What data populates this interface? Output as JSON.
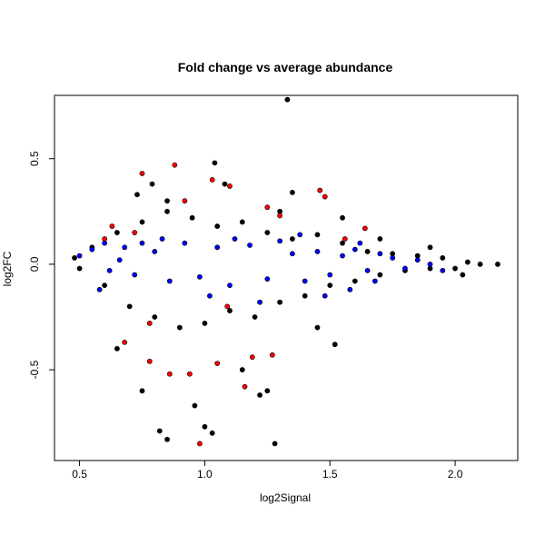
{
  "chart_data": {
    "type": "scatter",
    "title": "Fold change vs average abundance",
    "xlabel": "log2Signal",
    "ylabel": "log2FC",
    "xlim": [
      0.4,
      2.25
    ],
    "ylim": [
      -0.93,
      0.8
    ],
    "x_ticks": [
      0.5,
      1.0,
      1.5,
      2.0
    ],
    "x_tick_labels": [
      "0.5",
      "1.0",
      "1.5",
      "2.0"
    ],
    "y_ticks": [
      -0.5,
      0.0,
      0.5
    ],
    "y_tick_labels": [
      "-0.5",
      "0.0",
      "0.5"
    ],
    "grid": false,
    "legend": "none",
    "colors": {
      "black": "#000000",
      "blue": "#0000ff",
      "red": "#ff0000"
    },
    "series": [
      {
        "color": "black",
        "points": [
          [
            0.48,
            0.03
          ],
          [
            0.5,
            -0.02
          ],
          [
            0.55,
            0.08
          ],
          [
            0.6,
            -0.1
          ],
          [
            0.65,
            0.15
          ],
          [
            0.7,
            -0.2
          ],
          [
            0.75,
            0.2
          ],
          [
            0.8,
            -0.25
          ],
          [
            0.85,
            0.25
          ],
          [
            0.9,
            -0.3
          ],
          [
            0.95,
            0.22
          ],
          [
            1.0,
            -0.28
          ],
          [
            1.05,
            0.18
          ],
          [
            1.1,
            -0.22
          ],
          [
            1.15,
            0.2
          ],
          [
            1.2,
            -0.25
          ],
          [
            1.25,
            0.15
          ],
          [
            1.3,
            -0.18
          ],
          [
            1.35,
            0.12
          ],
          [
            1.4,
            -0.15
          ],
          [
            1.45,
            0.14
          ],
          [
            1.5,
            -0.1
          ],
          [
            1.55,
            0.1
          ],
          [
            1.6,
            -0.08
          ],
          [
            1.65,
            0.06
          ],
          [
            1.7,
            -0.05
          ],
          [
            1.75,
            0.05
          ],
          [
            1.8,
            -0.03
          ],
          [
            1.85,
            0.04
          ],
          [
            1.9,
            -0.02
          ],
          [
            1.95,
            0.03
          ],
          [
            2.0,
            -0.02
          ],
          [
            2.05,
            0.01
          ],
          [
            2.1,
            0.0
          ],
          [
            2.17,
            0.0
          ],
          [
            1.33,
            0.78
          ],
          [
            1.04,
            0.48
          ],
          [
            0.75,
            -0.6
          ],
          [
            0.85,
            -0.83
          ],
          [
            0.82,
            -0.79
          ],
          [
            0.96,
            -0.67
          ],
          [
            1.0,
            -0.77
          ],
          [
            1.03,
            -0.8
          ],
          [
            1.28,
            -0.85
          ],
          [
            1.22,
            -0.62
          ],
          [
            1.25,
            -0.6
          ],
          [
            1.52,
            -0.38
          ],
          [
            0.73,
            0.33
          ],
          [
            0.79,
            0.38
          ],
          [
            0.85,
            0.3
          ],
          [
            1.08,
            0.38
          ],
          [
            1.35,
            0.34
          ],
          [
            1.55,
            0.22
          ],
          [
            1.7,
            0.12
          ],
          [
            1.9,
            0.08
          ],
          [
            2.03,
            -0.05
          ],
          [
            0.65,
            -0.4
          ],
          [
            1.15,
            -0.5
          ],
          [
            1.45,
            -0.3
          ],
          [
            1.3,
            0.25
          ]
        ]
      },
      {
        "color": "blue",
        "points": [
          [
            0.5,
            0.04
          ],
          [
            0.55,
            0.07
          ],
          [
            0.6,
            0.1
          ],
          [
            0.62,
            -0.03
          ],
          [
            0.68,
            0.08
          ],
          [
            0.72,
            -0.05
          ],
          [
            0.8,
            0.06
          ],
          [
            0.86,
            -0.08
          ],
          [
            0.92,
            0.1
          ],
          [
            0.98,
            -0.06
          ],
          [
            1.05,
            0.08
          ],
          [
            1.1,
            -0.1
          ],
          [
            1.18,
            0.09
          ],
          [
            1.25,
            -0.07
          ],
          [
            1.3,
            0.11
          ],
          [
            1.35,
            0.05
          ],
          [
            1.4,
            -0.08
          ],
          [
            1.45,
            0.06
          ],
          [
            1.5,
            -0.05
          ],
          [
            1.55,
            0.04
          ],
          [
            1.6,
            0.07
          ],
          [
            1.65,
            -0.03
          ],
          [
            1.7,
            0.05
          ],
          [
            1.75,
            0.03
          ],
          [
            1.8,
            -0.02
          ],
          [
            1.85,
            0.02
          ],
          [
            1.9,
            0.0
          ],
          [
            1.95,
            -0.03
          ],
          [
            0.75,
            0.1
          ],
          [
            0.83,
            0.12
          ],
          [
            1.02,
            -0.15
          ],
          [
            1.12,
            0.12
          ],
          [
            1.22,
            -0.18
          ],
          [
            1.48,
            -0.15
          ],
          [
            1.58,
            -0.12
          ],
          [
            0.58,
            -0.12
          ],
          [
            0.66,
            0.02
          ],
          [
            1.38,
            0.14
          ],
          [
            1.62,
            0.1
          ],
          [
            1.68,
            -0.08
          ]
        ]
      },
      {
        "color": "red",
        "points": [
          [
            0.75,
            0.43
          ],
          [
            0.88,
            0.47
          ],
          [
            0.92,
            0.3
          ],
          [
            1.03,
            0.4
          ],
          [
            1.1,
            0.37
          ],
          [
            1.25,
            0.27
          ],
          [
            1.3,
            0.23
          ],
          [
            1.46,
            0.35
          ],
          [
            1.48,
            0.32
          ],
          [
            0.68,
            -0.37
          ],
          [
            0.78,
            -0.46
          ],
          [
            0.86,
            -0.52
          ],
          [
            0.94,
            -0.52
          ],
          [
            0.98,
            -0.85
          ],
          [
            1.05,
            -0.47
          ],
          [
            1.16,
            -0.58
          ],
          [
            1.19,
            -0.44
          ],
          [
            1.27,
            -0.43
          ],
          [
            0.63,
            0.18
          ],
          [
            0.72,
            0.15
          ],
          [
            0.6,
            0.12
          ],
          [
            1.64,
            0.17
          ],
          [
            1.56,
            0.12
          ],
          [
            0.78,
            -0.28
          ],
          [
            1.09,
            -0.2
          ]
        ]
      }
    ]
  }
}
